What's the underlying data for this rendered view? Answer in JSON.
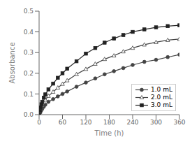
{
  "chart_data": {
    "type": "line",
    "xlabel": "Time (h)",
    "ylabel": "Absorbance",
    "x": [
      0,
      2,
      4,
      6,
      8,
      12,
      16,
      24,
      36,
      48,
      60,
      72,
      96,
      120,
      144,
      168,
      192,
      216,
      240,
      270,
      300,
      330,
      360
    ],
    "series": [
      {
        "name": "1.0 mL",
        "color": "#444444",
        "marker": "circle",
        "values": [
          0.0,
          0.008,
          0.015,
          0.022,
          0.028,
          0.038,
          0.048,
          0.062,
          0.075,
          0.088,
          0.1,
          0.112,
          0.135,
          0.155,
          0.175,
          0.195,
          0.21,
          0.225,
          0.24,
          0.255,
          0.265,
          0.278,
          0.29
        ]
      },
      {
        "name": "2.0 mL",
        "color": "#444444",
        "marker": "open-triangle",
        "values": [
          0.0,
          0.012,
          0.025,
          0.035,
          0.045,
          0.06,
          0.072,
          0.09,
          0.11,
          0.13,
          0.148,
          0.165,
          0.195,
          0.22,
          0.245,
          0.268,
          0.285,
          0.305,
          0.322,
          0.338,
          0.35,
          0.36,
          0.365
        ]
      },
      {
        "name": "3.0 mL",
        "color": "#222222",
        "marker": "square",
        "values": [
          0.0,
          0.018,
          0.035,
          0.05,
          0.062,
          0.082,
          0.098,
          0.122,
          0.15,
          0.178,
          0.2,
          0.222,
          0.258,
          0.295,
          0.322,
          0.348,
          0.368,
          0.385,
          0.4,
          0.412,
          0.422,
          0.428,
          0.432
        ]
      }
    ],
    "xlim": [
      0,
      360
    ],
    "ylim": [
      0,
      0.5
    ],
    "xticks": [
      0,
      60,
      120,
      180,
      240,
      300,
      360
    ],
    "yticks": [
      {
        "value": 0,
        "label": "0.0"
      },
      0.1,
      0.2,
      0.3,
      0.4,
      0.5
    ],
    "grid": false,
    "legend": "lower right"
  }
}
